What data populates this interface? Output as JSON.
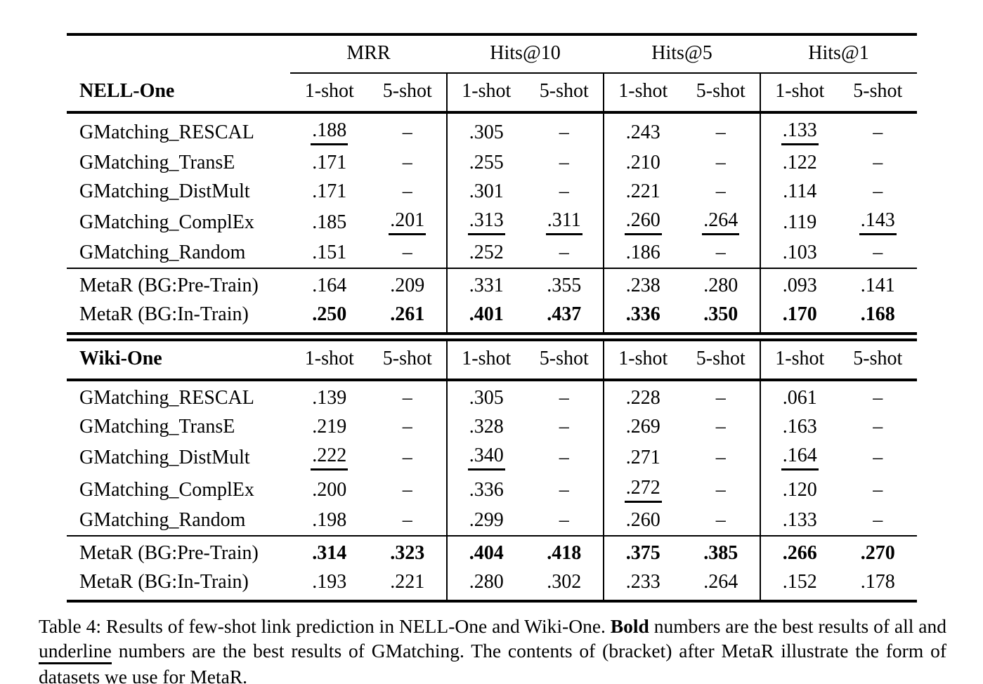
{
  "page": {
    "background_color": "#ffffff",
    "text_color": "#000000"
  },
  "table": {
    "metric_headers": [
      "MRR",
      "Hits@10",
      "Hits@5",
      "Hits@1"
    ],
    "shot_header": [
      "1-shot",
      "5-shot",
      "1-shot",
      "5-shot",
      "1-shot",
      "5-shot",
      "1-shot",
      "5-shot"
    ],
    "sections": [
      {
        "name": "NELL-One",
        "baseline_rows": [
          {
            "label": "GMatching_RESCAL",
            "values": [
              ".188",
              "–",
              ".305",
              "–",
              ".243",
              "–",
              ".133",
              "–"
            ],
            "underline": [
              0,
              6
            ],
            "bold": []
          },
          {
            "label": "GMatching_TransE",
            "values": [
              ".171",
              "–",
              ".255",
              "–",
              ".210",
              "–",
              ".122",
              "–"
            ],
            "underline": [],
            "bold": []
          },
          {
            "label": "GMatching_DistMult",
            "values": [
              ".171",
              "–",
              ".301",
              "–",
              ".221",
              "–",
              ".114",
              "–"
            ],
            "underline": [],
            "bold": []
          },
          {
            "label": "GMatching_ComplEx",
            "values": [
              ".185",
              ".201",
              ".313",
              ".311",
              ".260",
              ".264",
              ".119",
              ".143"
            ],
            "underline": [
              1,
              2,
              3,
              4,
              5,
              7
            ],
            "bold": []
          },
          {
            "label": "GMatching_Random",
            "values": [
              ".151",
              "–",
              ".252",
              "–",
              ".186",
              "–",
              ".103",
              "–"
            ],
            "underline": [],
            "bold": []
          }
        ],
        "metar_rows": [
          {
            "label": "MetaR (BG:Pre-Train)",
            "values": [
              ".164",
              ".209",
              ".331",
              ".355",
              ".238",
              ".280",
              ".093",
              ".141"
            ],
            "underline": [],
            "bold": []
          },
          {
            "label": "MetaR (BG:In-Train)",
            "values": [
              ".250",
              ".261",
              ".401",
              ".437",
              ".336",
              ".350",
              ".170",
              ".168"
            ],
            "underline": [],
            "bold": [
              0,
              1,
              2,
              3,
              4,
              5,
              6,
              7
            ]
          }
        ]
      },
      {
        "name": "Wiki-One",
        "baseline_rows": [
          {
            "label": "GMatching_RESCAL",
            "values": [
              ".139",
              "–",
              ".305",
              "–",
              ".228",
              "–",
              ".061",
              "–"
            ],
            "underline": [],
            "bold": []
          },
          {
            "label": "GMatching_TransE",
            "values": [
              ".219",
              "–",
              ".328",
              "–",
              ".269",
              "–",
              ".163",
              "–"
            ],
            "underline": [],
            "bold": []
          },
          {
            "label": "GMatching_DistMult",
            "values": [
              ".222",
              "–",
              ".340",
              "–",
              ".271",
              "–",
              ".164",
              "–"
            ],
            "underline": [
              0,
              2,
              6
            ],
            "bold": []
          },
          {
            "label": "GMatching_ComplEx",
            "values": [
              ".200",
              "–",
              ".336",
              "–",
              ".272",
              "–",
              ".120",
              "–"
            ],
            "underline": [
              4
            ],
            "bold": []
          },
          {
            "label": "GMatching_Random",
            "values": [
              ".198",
              "–",
              ".299",
              "–",
              ".260",
              "–",
              ".133",
              "–"
            ],
            "underline": [],
            "bold": []
          }
        ],
        "metar_rows": [
          {
            "label": "MetaR (BG:Pre-Train)",
            "values": [
              ".314",
              ".323",
              ".404",
              ".418",
              ".375",
              ".385",
              ".266",
              ".270"
            ],
            "underline": [],
            "bold": [
              0,
              1,
              2,
              3,
              4,
              5,
              6,
              7
            ]
          },
          {
            "label": "MetaR (BG:In-Train)",
            "values": [
              ".193",
              ".221",
              ".280",
              ".302",
              ".233",
              ".264",
              ".152",
              ".178"
            ],
            "underline": [],
            "bold": []
          }
        ]
      }
    ]
  },
  "caption": {
    "parts": [
      {
        "text": "Table 4: Results of few-shot link prediction in NELL-One and Wiki-One. ",
        "style": "plain"
      },
      {
        "text": "Bold",
        "style": "bold"
      },
      {
        "text": " numbers are the best results of all and ",
        "style": "plain"
      },
      {
        "text": "underline",
        "style": "underline"
      },
      {
        "text": " numbers are the best results of GMatching. The contents of (bracket) after MetaR illustrate the form of datasets we use for MetaR.",
        "style": "plain"
      }
    ]
  }
}
